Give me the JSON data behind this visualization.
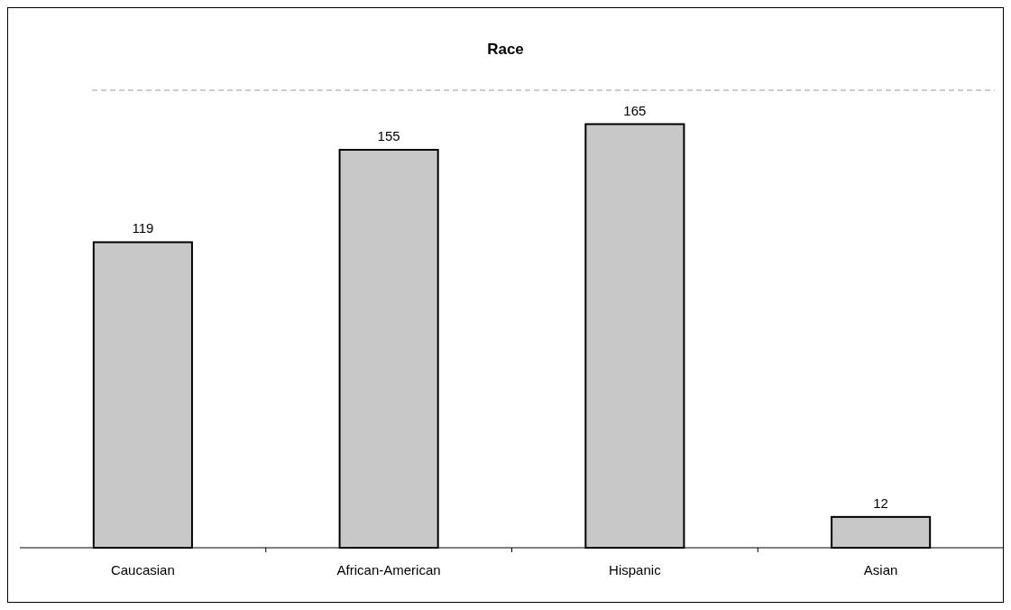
{
  "chart_data": {
    "type": "bar",
    "title": "Race",
    "categories": [
      "Caucasian",
      "African-American",
      "Hispanic",
      "Asian"
    ],
    "values": [
      119,
      155,
      165,
      12
    ],
    "color": "#c8c8c8",
    "data_labels": true
  }
}
